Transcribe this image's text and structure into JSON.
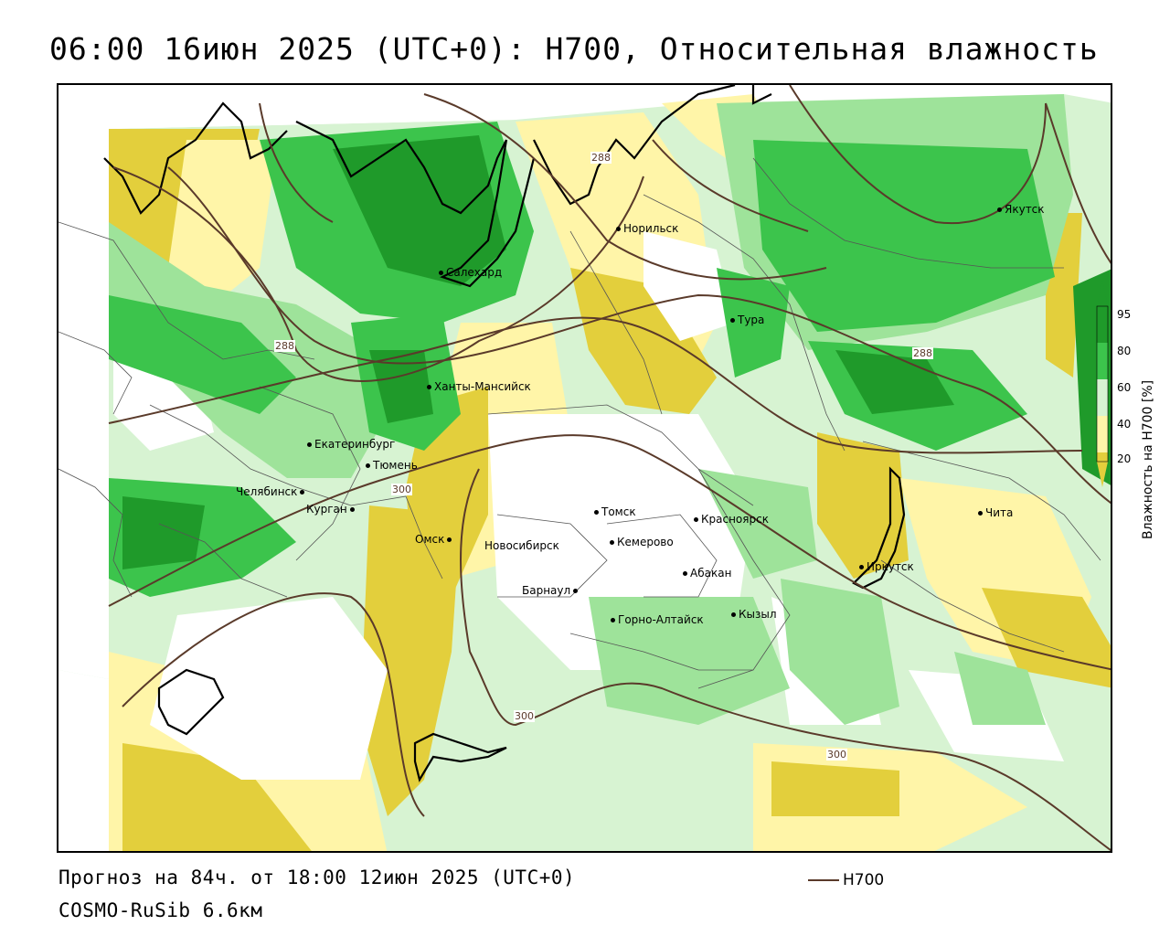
{
  "title": "06:00 16июн 2025 (UTC+0): H700, Относительная влажность",
  "footer": {
    "forecast": "Прогноз на 84ч. от 18:00 12июн 2025 (UTC+0)",
    "model": "COSMO-RuSib 6.6км"
  },
  "legend": {
    "line_label": "H700",
    "line_color": "#5a3a2a"
  },
  "colorbar": {
    "title": "Влажность на H700 [%]",
    "ticks": [
      "95",
      "80",
      "60",
      "40",
      "20"
    ],
    "colors": {
      "very_wet": "#1f9a2a",
      "wet": "#3cc44c",
      "moist": "#9ee39a",
      "light": "#d7f3d2",
      "neutral": "#ffffff",
      "dry_light": "#fff5a8",
      "dry": "#e3cf3c"
    }
  },
  "cities": [
    {
      "name": "Норильск"
    },
    {
      "name": "Якутск"
    },
    {
      "name": "Салехард"
    },
    {
      "name": "Тура"
    },
    {
      "name": "Ханты-Мансийск"
    },
    {
      "name": "Екатеринбург"
    },
    {
      "name": "Тюмень"
    },
    {
      "name": "Челябинск"
    },
    {
      "name": "Курган"
    },
    {
      "name": "Омск"
    },
    {
      "name": "Новосибирск"
    },
    {
      "name": "Томск"
    },
    {
      "name": "Кемерово"
    },
    {
      "name": "Красноярск"
    },
    {
      "name": "Абакан"
    },
    {
      "name": "Барнаул"
    },
    {
      "name": "Горно-Алтайск"
    },
    {
      "name": "Кызыл"
    },
    {
      "name": "Иркутск"
    },
    {
      "name": "Чита"
    }
  ],
  "isolines": [
    {
      "value": "288"
    },
    {
      "value": "288"
    },
    {
      "value": "288"
    },
    {
      "value": "300"
    },
    {
      "value": "300"
    },
    {
      "value": "300"
    }
  ]
}
